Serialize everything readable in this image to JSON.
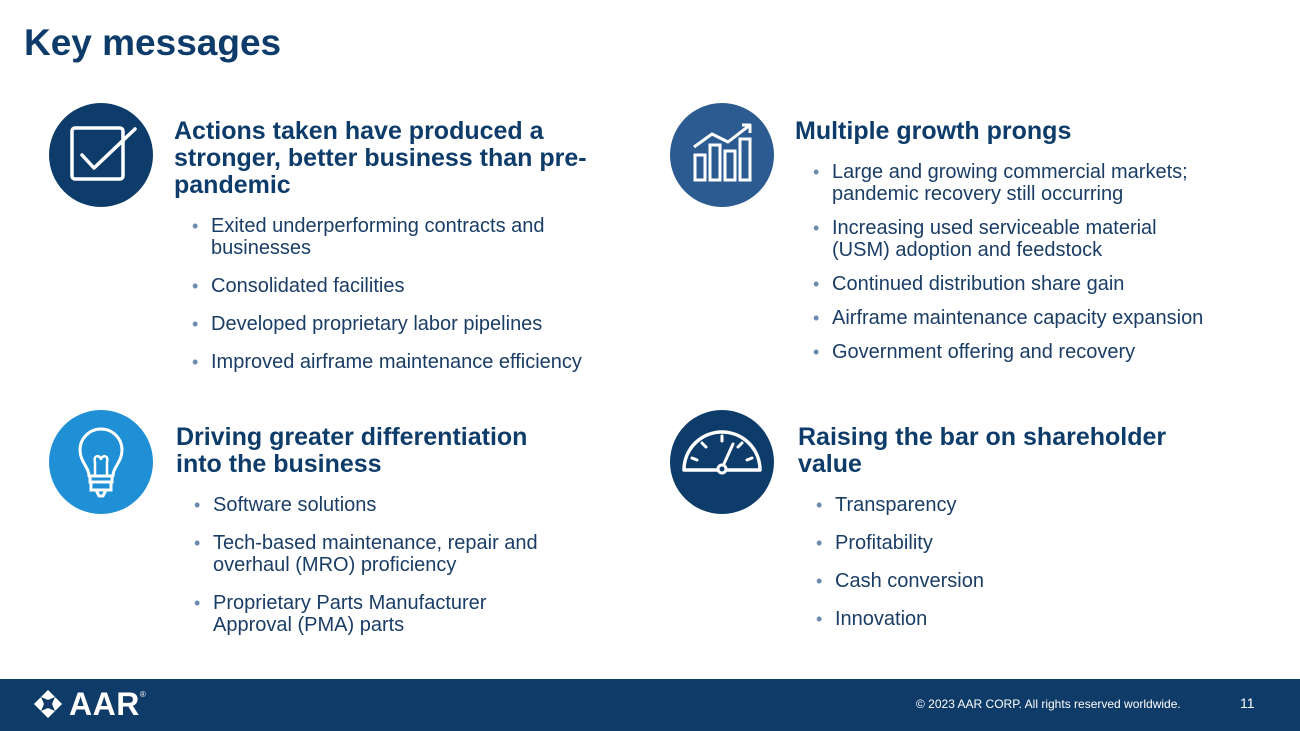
{
  "title": "Key messages",
  "sections": [
    {
      "icon": "checkbox-icon",
      "color": "#0e3c6a",
      "heading": [
        "Actions taken have produced a",
        "stronger, better business than pre-",
        "pandemic"
      ],
      "bullets": [
        [
          "Exited underperforming contracts and",
          "businesses"
        ],
        [
          "Consolidated facilities"
        ],
        [
          "Developed proprietary labor pipelines"
        ],
        [
          "Improved airframe maintenance efficiency"
        ]
      ]
    },
    {
      "icon": "bar-chart-growth-icon",
      "color": "#2b5b90",
      "heading": [
        "Multiple growth prongs"
      ],
      "bullets": [
        [
          "Large and growing commercial markets;",
          "pandemic recovery still occurring"
        ],
        [
          "Increasing used serviceable material",
          "(USM) adoption and feedstock"
        ],
        [
          "Continued distribution share gain"
        ],
        [
          "Airframe maintenance capacity expansion"
        ],
        [
          "Government offering and recovery"
        ]
      ]
    },
    {
      "icon": "lightbulb-icon",
      "color": "#1f8fd6",
      "heading": [
        "Driving greater differentiation",
        "into the business"
      ],
      "bullets": [
        [
          "Software solutions"
        ],
        [
          "Tech-based maintenance, repair and",
          "overhaul (MRO) proficiency"
        ],
        [
          "Proprietary Parts Manufacturer",
          "Approval (PMA) parts"
        ]
      ]
    },
    {
      "icon": "gauge-icon",
      "color": "#0e3c6a",
      "heading": [
        "Raising the bar on shareholder",
        "value"
      ],
      "bullets": [
        [
          "Transparency"
        ],
        [
          "Profitability"
        ],
        [
          "Cash conversion"
        ],
        [
          "Innovation"
        ]
      ]
    }
  ],
  "footer": {
    "logo_text": "AAR",
    "logo_mark": "®",
    "copyright": "© 2023 AAR CORP. All rights reserved worldwide.",
    "page_number": "11",
    "color": "#0f3b68"
  }
}
